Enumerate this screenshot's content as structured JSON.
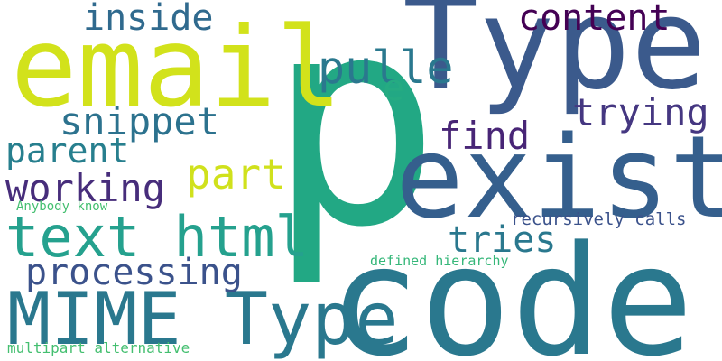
{
  "words": [
    {
      "id": "p",
      "text": "p",
      "color": "#22a884"
    },
    {
      "id": "code",
      "text": "code",
      "color": "#2a788e"
    },
    {
      "id": "exist",
      "text": "exist",
      "color": "#355f8d"
    },
    {
      "id": "type",
      "text": "Type",
      "color": "#3b5a8c"
    },
    {
      "id": "email",
      "text": "email",
      "color": "#d2e21b"
    },
    {
      "id": "mime-type",
      "text": "MIME Type",
      "color": "#2a788e"
    },
    {
      "id": "text-html",
      "text": "text html",
      "color": "#25a18e"
    },
    {
      "id": "processing",
      "text": "processing",
      "color": "#3b528b"
    },
    {
      "id": "working",
      "text": "working",
      "color": "#472d7b"
    },
    {
      "id": "part",
      "text": "part",
      "color": "#d0e11c"
    },
    {
      "id": "parent",
      "text": "parent",
      "color": "#277f8e"
    },
    {
      "id": "snippet",
      "text": "snippet",
      "color": "#2c728e"
    },
    {
      "id": "inside",
      "text": "inside",
      "color": "#306a8e"
    },
    {
      "id": "pulle",
      "text": "pulle",
      "color": "#2a788e"
    },
    {
      "id": "e",
      "text": "e",
      "color": "#25ab82"
    },
    {
      "id": "content",
      "text": "content",
      "color": "#440154"
    },
    {
      "id": "trying",
      "text": "trying",
      "color": "#453781"
    },
    {
      "id": "find",
      "text": "find",
      "color": "#482576"
    },
    {
      "id": "tries",
      "text": "tries",
      "color": "#2a788e"
    },
    {
      "id": "recursively-calls",
      "text": "recursively calls",
      "color": "#3b528b"
    },
    {
      "id": "defined-hierarchy",
      "text": "defined hierarchy",
      "color": "#35b779"
    },
    {
      "id": "anybody-know",
      "text": "Anybody know",
      "color": "#44bf70"
    },
    {
      "id": "multipart-alternative",
      "text": "multipart alternative",
      "color": "#44bf70"
    }
  ]
}
